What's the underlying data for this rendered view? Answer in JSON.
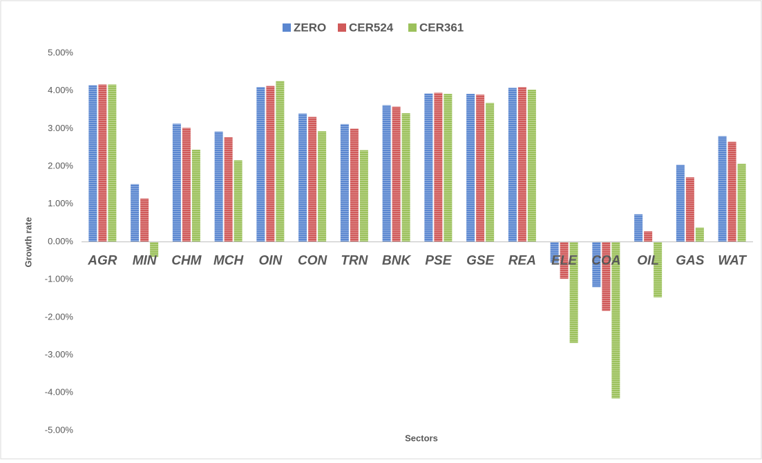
{
  "chart_data": {
    "type": "bar",
    "x_label": "Sectors",
    "y_label": "Growth rate",
    "categories": [
      "AGR",
      "MIN",
      "CHM",
      "MCH",
      "OIN",
      "CON",
      "TRN",
      "BNK",
      "PSE",
      "GSE",
      "REA",
      "ELE",
      "COA",
      "OIL",
      "GAS",
      "WAT"
    ],
    "series": [
      {
        "name": "ZERO",
        "color": "#5b87d0",
        "values": [
          4.15,
          1.53,
          3.13,
          2.92,
          4.1,
          3.4,
          3.12,
          3.62,
          3.93,
          3.92,
          4.08,
          -0.55,
          -1.2,
          0.73,
          2.04,
          2.8
        ]
      },
      {
        "name": "CER524",
        "color": "#d05a5a",
        "values": [
          4.17,
          1.15,
          3.02,
          2.77,
          4.13,
          3.31,
          3.0,
          3.58,
          3.95,
          3.9,
          4.1,
          -0.98,
          -1.83,
          0.28,
          1.71,
          2.65
        ]
      },
      {
        "name": "CER361",
        "color": "#9cc15c",
        "values": [
          4.17,
          -0.4,
          2.44,
          2.16,
          4.26,
          2.93,
          2.43,
          3.41,
          3.92,
          3.68,
          4.03,
          -2.68,
          -4.15,
          -1.47,
          0.38,
          2.07
        ]
      }
    ],
    "ylim": [
      -5,
      5
    ],
    "yticks": [
      {
        "value": -5,
        "label": "-5.00%"
      },
      {
        "value": -4,
        "label": "-4.00%"
      },
      {
        "value": -3,
        "label": "-3.00%"
      },
      {
        "value": -2,
        "label": "-2.00%"
      },
      {
        "value": -1,
        "label": "-1.00%"
      },
      {
        "value": 0,
        "label": "0.00%"
      },
      {
        "value": 1,
        "label": "1.00%"
      },
      {
        "value": 2,
        "label": "2.00%"
      },
      {
        "value": 3,
        "label": "3.00%"
      },
      {
        "value": 4,
        "label": "4.00%"
      },
      {
        "value": 5,
        "label": "5.00%"
      }
    ],
    "grid": false,
    "legend": "top"
  }
}
